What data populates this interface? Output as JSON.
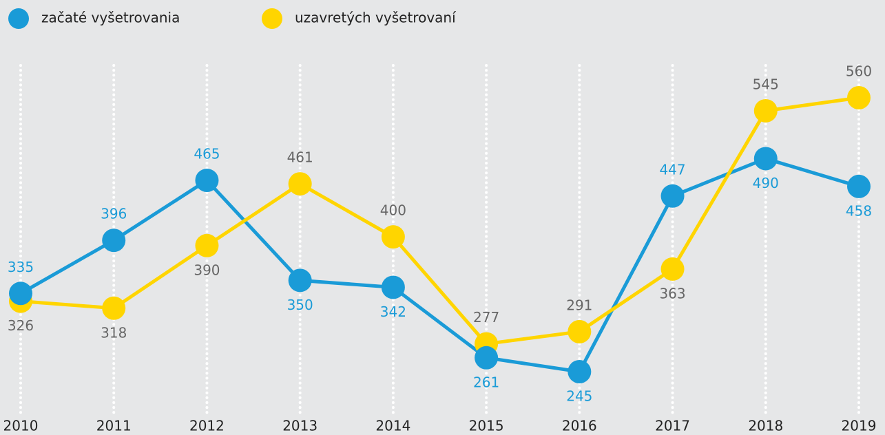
{
  "chart_data": {
    "type": "line",
    "categories": [
      "2010",
      "2011",
      "2012",
      "2013",
      "2014",
      "2015",
      "2016",
      "2017",
      "2018",
      "2019"
    ],
    "series": [
      {
        "name": "začaté vyšetrovania",
        "color": "#1a9bd7",
        "values": [
          335,
          396,
          465,
          350,
          342,
          261,
          245,
          447,
          490,
          458
        ]
      },
      {
        "name": "uzavretých vyšetrovaní",
        "color": "#ffd500",
        "values": [
          326,
          318,
          390,
          461,
          400,
          277,
          291,
          363,
          545,
          560
        ]
      }
    ]
  }
}
